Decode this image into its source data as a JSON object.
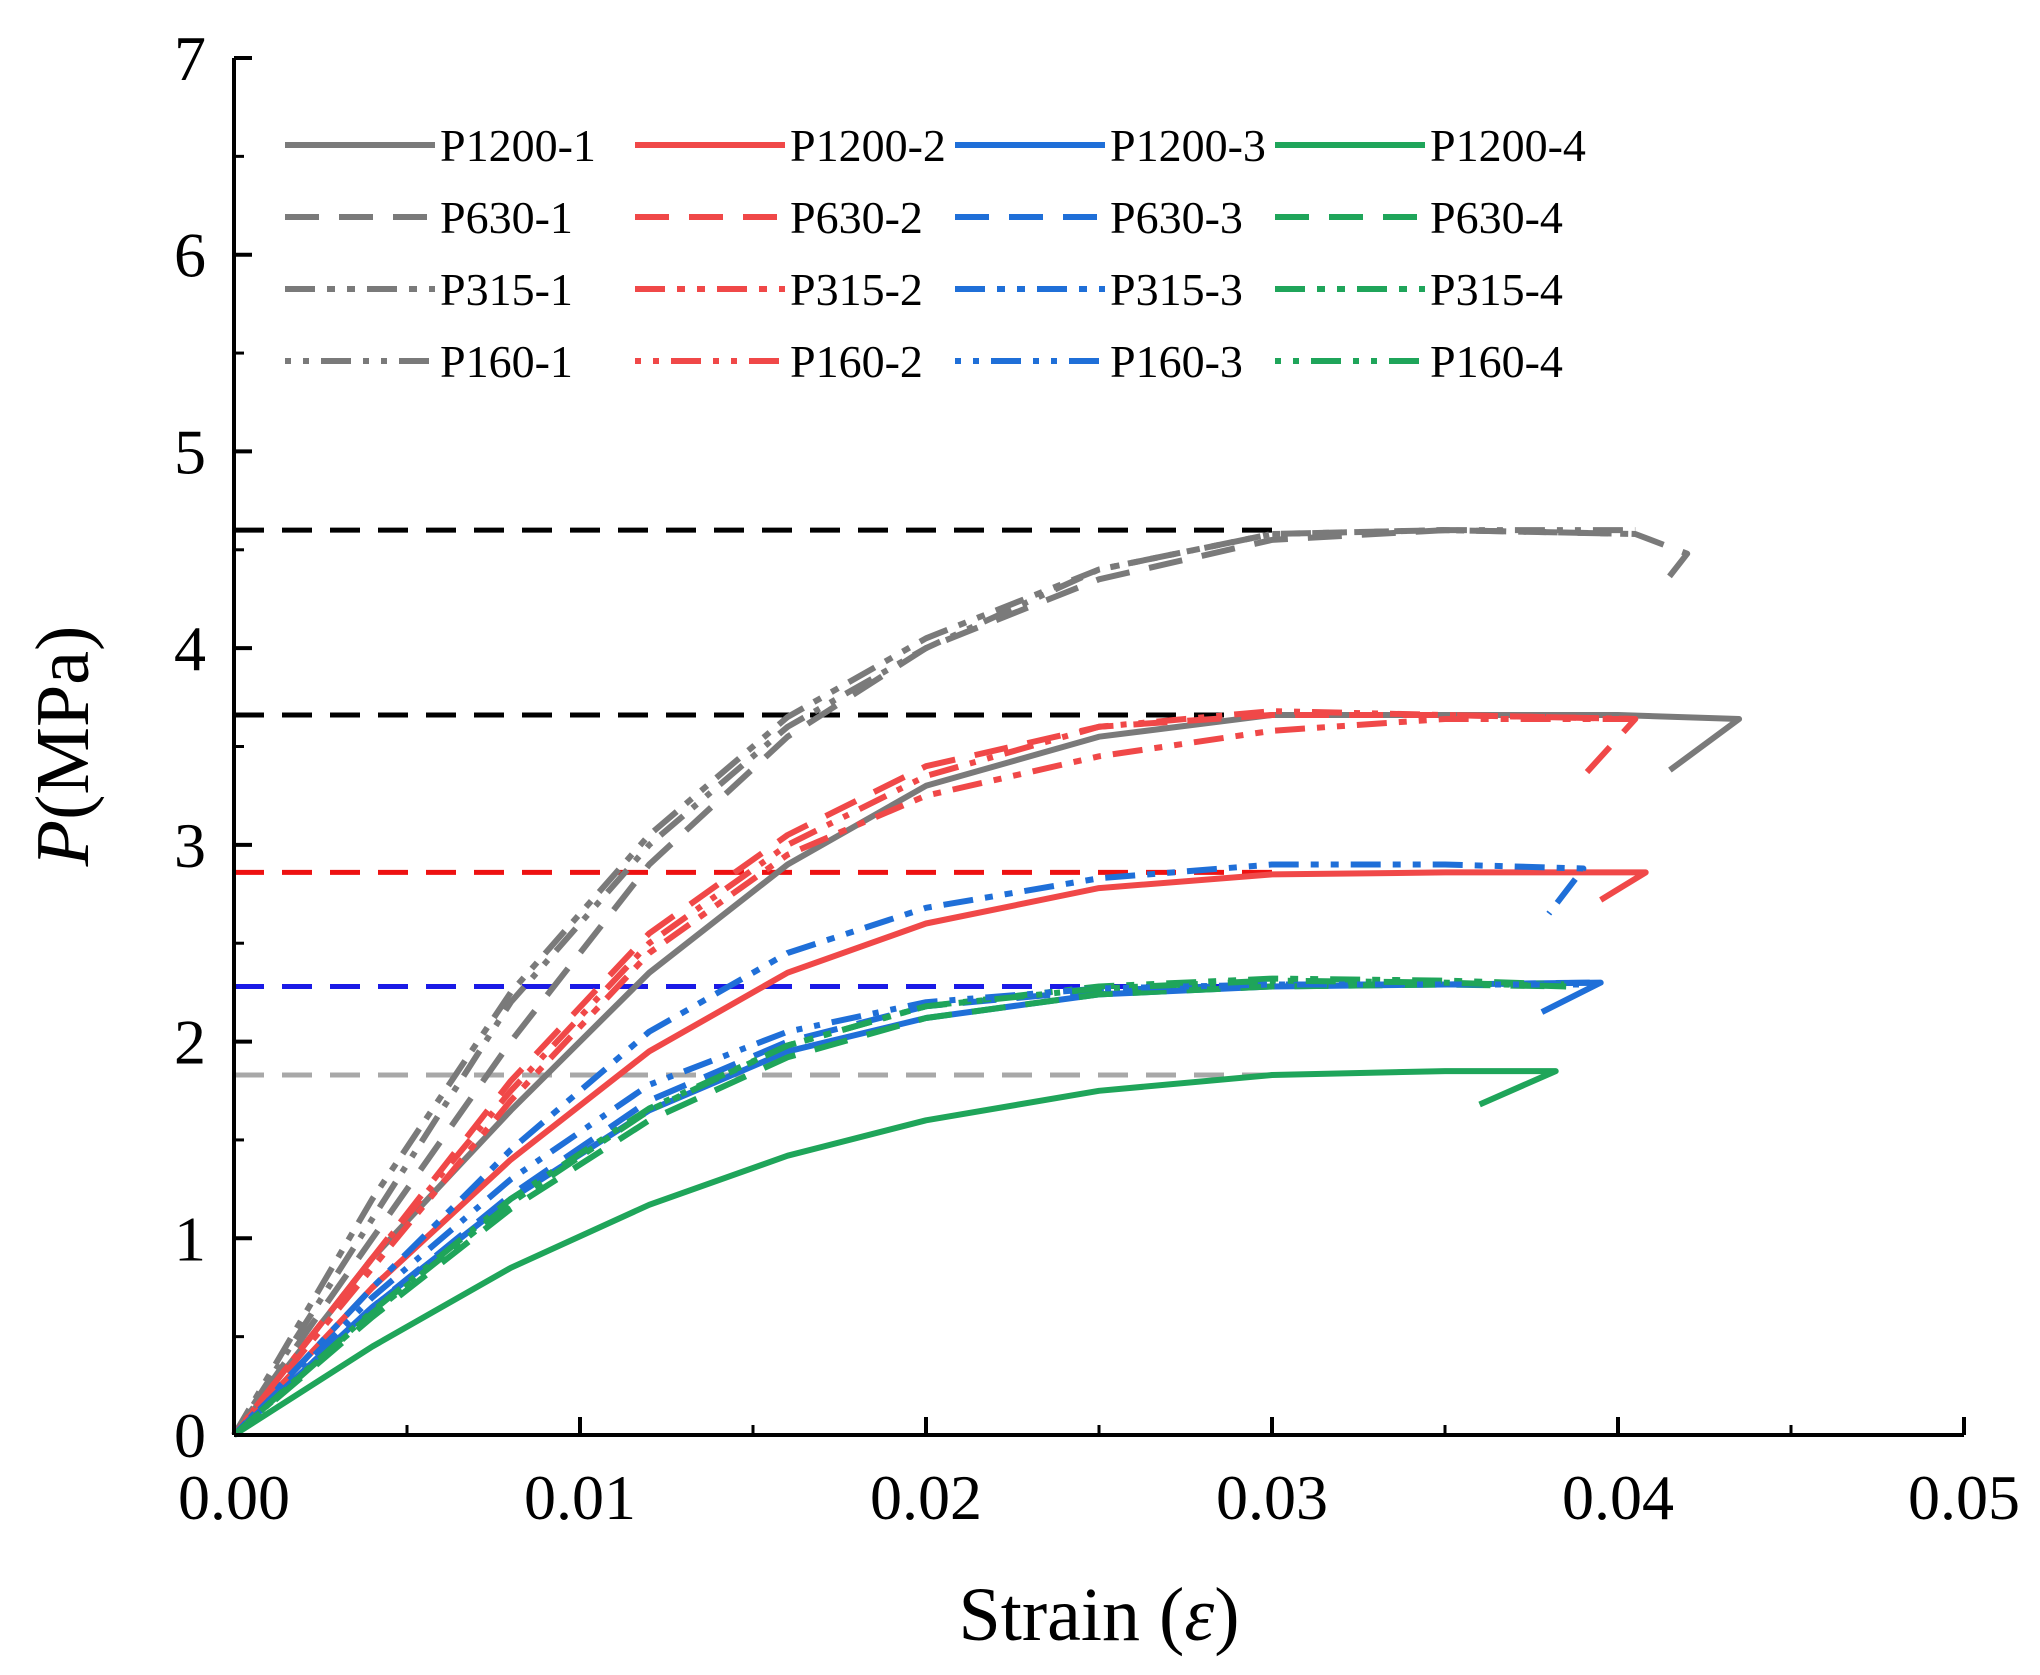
{
  "chart_data": {
    "type": "line",
    "xlabel": "Strain (ε)",
    "xlabel_main": "Strain (",
    "xlabel_symbol": "ε",
    "xlabel_close": ")",
    "ylabel": "P(MPa)",
    "ylabel_italic": "P",
    "ylabel_rest": "(MPa)",
    "xlim": [
      0,
      0.05
    ],
    "ylim": [
      0,
      7
    ],
    "xticks": [
      "0.00",
      "0.01",
      "0.02",
      "0.03",
      "0.04",
      "0.05"
    ],
    "yticks": [
      "0",
      "1",
      "2",
      "3",
      "4",
      "5",
      "6",
      "7"
    ],
    "legend_position": "top-left",
    "colors": {
      "gray": "#7a7a7a",
      "red": "#f04848",
      "blue": "#1f6fd8",
      "green": "#1fa55a"
    },
    "reference_lines": [
      {
        "y": 4.6,
        "color": "#000000"
      },
      {
        "y": 3.66,
        "color": "#000000"
      },
      {
        "y": 2.86,
        "color": "#ee1111"
      },
      {
        "y": 2.28,
        "color": "#1a1ae6"
      },
      {
        "y": 1.83,
        "color": "#a8a8a8"
      }
    ],
    "series": [
      {
        "name": "P1200-1",
        "color": "gray",
        "style": "solid",
        "points": [
          [
            0,
            0
          ],
          [
            0.004,
            0.9
          ],
          [
            0.008,
            1.65
          ],
          [
            0.012,
            2.35
          ],
          [
            0.016,
            2.9
          ],
          [
            0.02,
            3.3
          ],
          [
            0.025,
            3.55
          ],
          [
            0.03,
            3.66
          ],
          [
            0.035,
            3.66
          ],
          [
            0.04,
            3.66
          ],
          [
            0.0435,
            3.64
          ],
          [
            0.0415,
            3.38
          ]
        ]
      },
      {
        "name": "P1200-2",
        "color": "red",
        "style": "solid",
        "points": [
          [
            0,
            0
          ],
          [
            0.004,
            0.75
          ],
          [
            0.008,
            1.4
          ],
          [
            0.012,
            1.95
          ],
          [
            0.016,
            2.35
          ],
          [
            0.02,
            2.6
          ],
          [
            0.025,
            2.78
          ],
          [
            0.03,
            2.85
          ],
          [
            0.035,
            2.86
          ],
          [
            0.0408,
            2.86
          ],
          [
            0.0395,
            2.72
          ]
        ]
      },
      {
        "name": "P1200-3",
        "color": "blue",
        "style": "solid",
        "points": [
          [
            0,
            0
          ],
          [
            0.004,
            0.65
          ],
          [
            0.008,
            1.2
          ],
          [
            0.012,
            1.65
          ],
          [
            0.016,
            1.95
          ],
          [
            0.02,
            2.12
          ],
          [
            0.025,
            2.24
          ],
          [
            0.03,
            2.28
          ],
          [
            0.035,
            2.29
          ],
          [
            0.0395,
            2.3
          ],
          [
            0.0378,
            2.15
          ]
        ]
      },
      {
        "name": "P1200-4",
        "color": "green",
        "style": "solid",
        "points": [
          [
            0,
            0
          ],
          [
            0.004,
            0.45
          ],
          [
            0.008,
            0.85
          ],
          [
            0.012,
            1.17
          ],
          [
            0.016,
            1.42
          ],
          [
            0.02,
            1.6
          ],
          [
            0.025,
            1.75
          ],
          [
            0.03,
            1.83
          ],
          [
            0.035,
            1.85
          ],
          [
            0.0382,
            1.85
          ],
          [
            0.036,
            1.68
          ]
        ]
      },
      {
        "name": "P630-1",
        "color": "gray",
        "style": "dash",
        "points": [
          [
            0,
            0
          ],
          [
            0.004,
            1.0
          ],
          [
            0.008,
            2.0
          ],
          [
            0.012,
            2.9
          ],
          [
            0.016,
            3.55
          ],
          [
            0.02,
            4.0
          ],
          [
            0.025,
            4.35
          ],
          [
            0.03,
            4.55
          ],
          [
            0.035,
            4.6
          ],
          [
            0.0405,
            4.58
          ],
          [
            0.042,
            4.48
          ],
          [
            0.0412,
            4.3
          ]
        ]
      },
      {
        "name": "P630-2",
        "color": "red",
        "style": "dash",
        "points": [
          [
            0,
            0
          ],
          [
            0.004,
            0.9
          ],
          [
            0.008,
            1.8
          ],
          [
            0.012,
            2.55
          ],
          [
            0.016,
            3.05
          ],
          [
            0.02,
            3.4
          ],
          [
            0.025,
            3.6
          ],
          [
            0.03,
            3.66
          ],
          [
            0.035,
            3.66
          ],
          [
            0.0405,
            3.64
          ],
          [
            0.039,
            3.35
          ]
        ]
      },
      {
        "name": "P630-3",
        "color": "blue",
        "style": "dash",
        "points": [
          [
            0,
            0
          ],
          [
            0.004,
            0.65
          ],
          [
            0.008,
            1.22
          ],
          [
            0.012,
            1.7
          ],
          [
            0.016,
            2.0
          ],
          [
            0.02,
            2.18
          ],
          [
            0.025,
            2.26
          ],
          [
            0.03,
            2.29
          ],
          [
            0.035,
            2.29
          ],
          [
            0.0392,
            2.3
          ]
        ]
      },
      {
        "name": "P630-4",
        "color": "green",
        "style": "dash",
        "points": [
          [
            0,
            0
          ],
          [
            0.004,
            0.6
          ],
          [
            0.008,
            1.15
          ],
          [
            0.012,
            1.6
          ],
          [
            0.016,
            1.92
          ],
          [
            0.02,
            2.12
          ],
          [
            0.025,
            2.24
          ],
          [
            0.03,
            2.28
          ],
          [
            0.035,
            2.29
          ],
          [
            0.0385,
            2.28
          ]
        ]
      },
      {
        "name": "P315-1",
        "color": "gray",
        "style": "dashdotdot",
        "points": [
          [
            0,
            0
          ],
          [
            0.004,
            1.2
          ],
          [
            0.008,
            2.25
          ],
          [
            0.012,
            3.05
          ],
          [
            0.016,
            3.65
          ],
          [
            0.02,
            4.05
          ],
          [
            0.025,
            4.4
          ],
          [
            0.03,
            4.58
          ],
          [
            0.035,
            4.6
          ],
          [
            0.0405,
            4.58
          ]
        ]
      },
      {
        "name": "P315-2",
        "color": "red",
        "style": "dashdotdot",
        "points": [
          [
            0,
            0
          ],
          [
            0.004,
            0.85
          ],
          [
            0.008,
            1.7
          ],
          [
            0.012,
            2.45
          ],
          [
            0.016,
            2.95
          ],
          [
            0.02,
            3.25
          ],
          [
            0.025,
            3.45
          ],
          [
            0.03,
            3.58
          ],
          [
            0.035,
            3.64
          ],
          [
            0.0405,
            3.64
          ]
        ]
      },
      {
        "name": "P315-3",
        "color": "blue",
        "style": "dashdotdot",
        "points": [
          [
            0,
            0
          ],
          [
            0.004,
            0.75
          ],
          [
            0.008,
            1.45
          ],
          [
            0.012,
            2.05
          ],
          [
            0.016,
            2.45
          ],
          [
            0.02,
            2.68
          ],
          [
            0.025,
            2.83
          ],
          [
            0.03,
            2.9
          ],
          [
            0.035,
            2.9
          ],
          [
            0.039,
            2.88
          ],
          [
            0.038,
            2.65
          ]
        ]
      },
      {
        "name": "P315-4",
        "color": "green",
        "style": "dashdotdot",
        "points": [
          [
            0,
            0
          ],
          [
            0.004,
            0.62
          ],
          [
            0.008,
            1.18
          ],
          [
            0.012,
            1.65
          ],
          [
            0.016,
            1.98
          ],
          [
            0.02,
            2.18
          ],
          [
            0.025,
            2.28
          ],
          [
            0.03,
            2.32
          ],
          [
            0.035,
            2.31
          ],
          [
            0.0385,
            2.29
          ]
        ]
      },
      {
        "name": "P160-1",
        "color": "gray",
        "style": "dotdash",
        "points": [
          [
            0,
            0
          ],
          [
            0.004,
            1.1
          ],
          [
            0.008,
            2.2
          ],
          [
            0.012,
            3.0
          ],
          [
            0.016,
            3.6
          ],
          [
            0.02,
            4.0
          ],
          [
            0.025,
            4.4
          ],
          [
            0.03,
            4.58
          ],
          [
            0.035,
            4.6
          ],
          [
            0.0405,
            4.6
          ]
        ]
      },
      {
        "name": "P160-2",
        "color": "red",
        "style": "dotdash",
        "points": [
          [
            0,
            0
          ],
          [
            0.004,
            0.9
          ],
          [
            0.008,
            1.75
          ],
          [
            0.012,
            2.5
          ],
          [
            0.016,
            3.0
          ],
          [
            0.02,
            3.35
          ],
          [
            0.025,
            3.6
          ],
          [
            0.03,
            3.68
          ],
          [
            0.035,
            3.66
          ],
          [
            0.0405,
            3.64
          ]
        ]
      },
      {
        "name": "P160-3",
        "color": "blue",
        "style": "dotdash",
        "points": [
          [
            0,
            0
          ],
          [
            0.004,
            0.7
          ],
          [
            0.008,
            1.3
          ],
          [
            0.012,
            1.78
          ],
          [
            0.016,
            2.05
          ],
          [
            0.02,
            2.2
          ],
          [
            0.025,
            2.27
          ],
          [
            0.03,
            2.29
          ],
          [
            0.035,
            2.29
          ],
          [
            0.039,
            2.29
          ]
        ]
      },
      {
        "name": "P160-4",
        "color": "green",
        "style": "dotdash",
        "points": [
          [
            0,
            0
          ],
          [
            0.004,
            0.63
          ],
          [
            0.008,
            1.2
          ],
          [
            0.012,
            1.66
          ],
          [
            0.016,
            1.98
          ],
          [
            0.02,
            2.18
          ],
          [
            0.025,
            2.27
          ],
          [
            0.03,
            2.31
          ],
          [
            0.035,
            2.3
          ],
          [
            0.0385,
            2.28
          ]
        ]
      }
    ]
  }
}
